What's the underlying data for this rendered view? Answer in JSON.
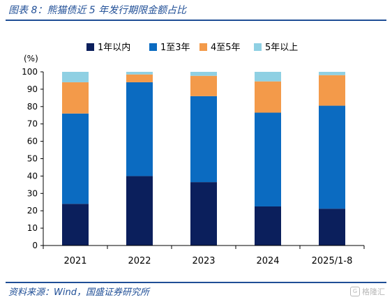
{
  "header": {
    "title": "图表 8：熊猫债近 5 年发行期限金额占比"
  },
  "footer": {
    "source": "资料来源：Wind，国盛证券研究所",
    "watermark": "格隆汇",
    "watermark_icon": "g-logo-icon"
  },
  "colors": {
    "series": [
      "#0b1f5c",
      "#0b6bc1",
      "#f39a4a",
      "#8fd0e3"
    ],
    "brand": "#1f4e96"
  },
  "chart_data": {
    "type": "bar",
    "stacked": true,
    "title": "",
    "ylabel": "(%)",
    "ylim": [
      0,
      100
    ],
    "yticks": [
      0,
      10,
      20,
      30,
      40,
      50,
      60,
      70,
      80,
      90,
      100
    ],
    "categories": [
      "2021",
      "2022",
      "2023",
      "2024",
      "2025/1-8"
    ],
    "series": [
      {
        "name": "1年以内",
        "values": [
          24,
          40,
          36.5,
          22.5,
          21.2
        ]
      },
      {
        "name": "1至3年",
        "values": [
          52,
          54,
          49.5,
          54,
          59.3
        ]
      },
      {
        "name": "4至5年",
        "values": [
          18,
          4.5,
          11.7,
          18,
          17.6
        ]
      },
      {
        "name": "5年以上",
        "values": [
          6,
          1.5,
          2.3,
          5.5,
          1.9
        ]
      }
    ],
    "legend_position": "top",
    "grid": false
  }
}
